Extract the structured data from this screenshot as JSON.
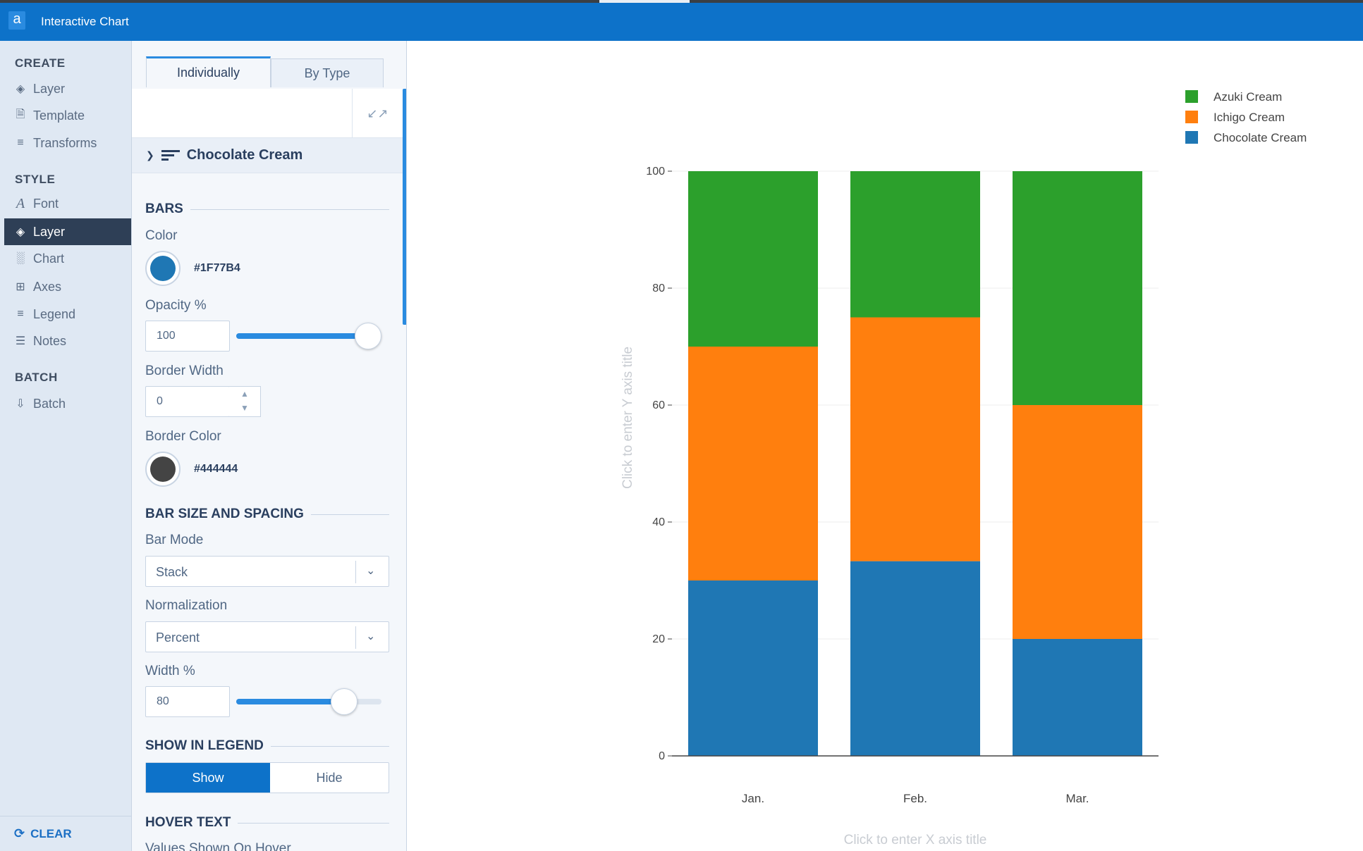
{
  "window": {
    "title": "Interactive Chart",
    "app_icon": "a"
  },
  "sidebar": {
    "sections": [
      {
        "label": "CREATE"
      },
      {
        "label": "STYLE"
      },
      {
        "label": "BATCH"
      }
    ],
    "items": [
      {
        "label": "Layer",
        "icon": "layers-icon"
      },
      {
        "label": "Template",
        "icon": "template-icon"
      },
      {
        "label": "Transforms",
        "icon": "list-icon"
      },
      {
        "label": "Font",
        "icon": "font-icon"
      },
      {
        "label": "Layer",
        "icon": "layers-icon",
        "active": true
      },
      {
        "label": "Chart",
        "icon": "bar-chart-icon"
      },
      {
        "label": "Axes",
        "icon": "grid-icon"
      },
      {
        "label": "Legend",
        "icon": "list-icon"
      },
      {
        "label": "Notes",
        "icon": "text-lines-icon"
      },
      {
        "label": "Batch",
        "icon": "batch-icon"
      }
    ],
    "clear_label": "CLEAR"
  },
  "panel": {
    "tabs": [
      {
        "label": "Individually",
        "active": true
      },
      {
        "label": "By Type",
        "active": false
      }
    ],
    "trace_name": "Chocolate Cream",
    "bars_section": "BARS",
    "color_label": "Color",
    "color_value": "#1F77B4",
    "opacity_label": "Opacity %",
    "opacity_value": "100",
    "opacity_level": 1.0,
    "border_width_label": "Border Width",
    "border_width_value": "0",
    "border_color_label": "Border Color",
    "border_color_value": "#444444",
    "size_section": "BAR SIZE AND SPACING",
    "bar_mode_label": "Bar Mode",
    "bar_mode_value": "Stack",
    "normalization_label": "Normalization",
    "normalization_value": "Percent",
    "width_label": "Width %",
    "width_value": "80",
    "width_level": 0.8,
    "legend_section": "SHOW IN LEGEND",
    "legend_options": [
      {
        "label": "Show",
        "on": true
      },
      {
        "label": "Hide",
        "on": false
      }
    ],
    "hover_section": "HOVER TEXT",
    "hover_values_label": "Values Shown On Hover"
  },
  "chart_data": {
    "type": "bar",
    "barmode": "stack",
    "normalization": "percent",
    "categories": [
      "Jan.",
      "Feb.",
      "Mar."
    ],
    "series": [
      {
        "name": "Chocolate Cream",
        "color": "#1F77B4",
        "values": [
          30,
          33.3,
          20
        ]
      },
      {
        "name": "Ichigo Cream",
        "color": "#FF7F0E",
        "values": [
          40,
          41.7,
          40
        ]
      },
      {
        "name": "Azuki Cream",
        "color": "#2CA02C",
        "values": [
          30,
          25,
          40
        ]
      }
    ],
    "ylim": [
      0,
      100
    ],
    "yticks": [
      0,
      20,
      40,
      60,
      80,
      100
    ],
    "xlabel_placeholder": "Click to enter X axis title",
    "ylabel_placeholder": "Click to enter Y axis title",
    "legend_position": "top-right",
    "legend_order": [
      "Azuki Cream",
      "Ichigo Cream",
      "Chocolate Cream"
    ],
    "grid": true
  }
}
